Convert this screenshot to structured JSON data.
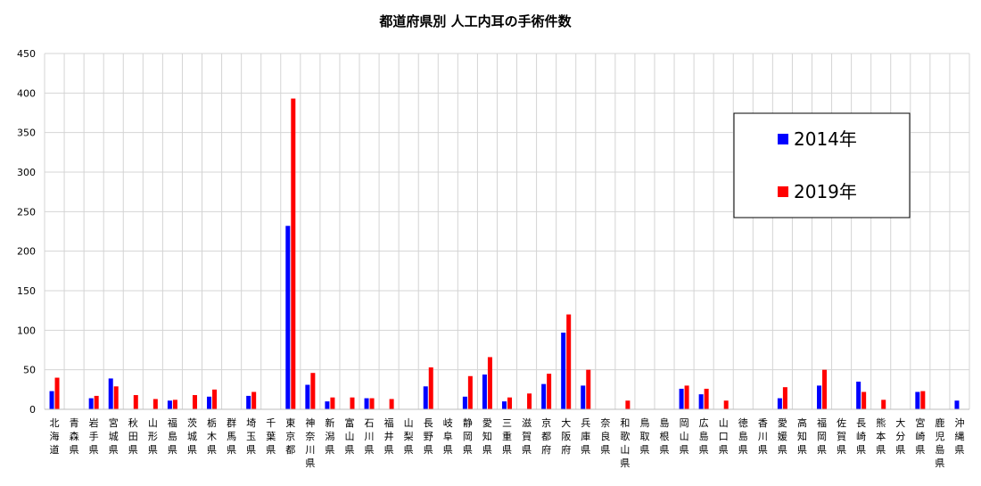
{
  "chart_data": {
    "type": "bar",
    "title": "都道府県別 人工内耳の手術件数",
    "xlabel": "",
    "ylabel": "",
    "ylim": [
      0,
      450
    ],
    "yticks": [
      0,
      50,
      100,
      150,
      200,
      250,
      300,
      350,
      400,
      450
    ],
    "grid": true,
    "legend_position": "top-right",
    "categories": [
      "北海道",
      "青森県",
      "岩手県",
      "宮城県",
      "秋田県",
      "山形県",
      "福島県",
      "茨城県",
      "栃木県",
      "群馬県",
      "埼玉県",
      "千葉県",
      "東京都",
      "神奈川県",
      "新潟県",
      "富山県",
      "石川県",
      "福井県",
      "山梨県",
      "長野県",
      "岐阜県",
      "静岡県",
      "愛知県",
      "三重県",
      "滋賀県",
      "京都府",
      "大阪府",
      "兵庫県",
      "奈良県",
      "和歌山県",
      "鳥取県",
      "島根県",
      "岡山県",
      "広島県",
      "山口県",
      "徳島県",
      "香川県",
      "愛媛県",
      "高知県",
      "福岡県",
      "佐賀県",
      "長崎県",
      "熊本県",
      "大分県",
      "宮崎県",
      "鹿児島県",
      "沖縄県"
    ],
    "series": [
      {
        "name": "2014年",
        "color": "#0000ff",
        "values": [
          23,
          0,
          14,
          39,
          0,
          0,
          11,
          0,
          16,
          0,
          17,
          0,
          232,
          31,
          10,
          0,
          14,
          0,
          0,
          29,
          0,
          16,
          44,
          10,
          0,
          32,
          97,
          30,
          0,
          0,
          0,
          0,
          26,
          19,
          0,
          0,
          0,
          14,
          0,
          30,
          0,
          35,
          0,
          0,
          22,
          0,
          11
        ]
      },
      {
        "name": "2019年",
        "color": "#ff0000",
        "values": [
          40,
          0,
          17,
          29,
          18,
          13,
          12,
          18,
          25,
          0,
          22,
          0,
          393,
          46,
          15,
          15,
          14,
          13,
          0,
          53,
          0,
          42,
          66,
          15,
          20,
          45,
          120,
          50,
          0,
          11,
          0,
          0,
          30,
          26,
          11,
          0,
          0,
          28,
          0,
          50,
          0,
          22,
          12,
          0,
          23,
          0,
          0
        ]
      }
    ]
  }
}
